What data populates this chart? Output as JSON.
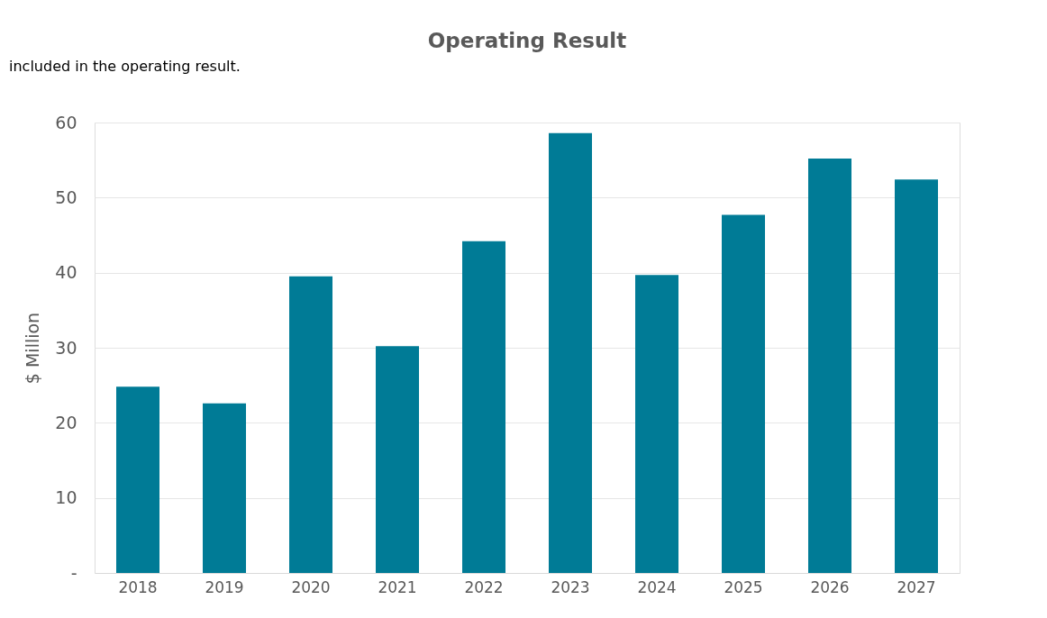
{
  "chart_data": {
    "type": "bar",
    "title": "Operating Result",
    "ylabel": "$ Million",
    "annotations": [
      "included in the operating result."
    ],
    "categories": [
      "2018",
      "2019",
      "2020",
      "2021",
      "2022",
      "2023",
      "2024",
      "2025",
      "2026",
      "2027"
    ],
    "values": [
      24.8,
      22.6,
      39.5,
      30.2,
      44.2,
      58.6,
      39.7,
      47.7,
      55.2,
      52.4
    ],
    "color": "#007b96",
    "ylim": [
      0,
      60
    ],
    "yticks": [
      {
        "value": 0,
        "label": "-"
      },
      10,
      20,
      30,
      40,
      50,
      60
    ],
    "grid": "y"
  }
}
